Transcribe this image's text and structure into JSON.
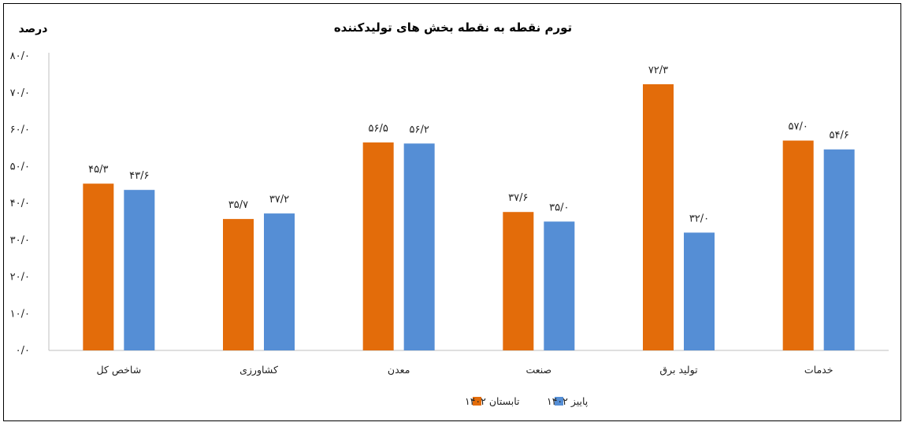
{
  "chart_data": {
    "type": "bar",
    "title": "تورم نقطه به نقطه بخش های تولیدکننده",
    "ylabel": "درصد",
    "xlabel": "",
    "ylim": [
      0,
      80
    ],
    "yticks": [
      0,
      10,
      20,
      30,
      40,
      50,
      60,
      70,
      80
    ],
    "ytick_labels": [
      "۰/۰",
      "۱۰/۰",
      "۲۰/۰",
      "۳۰/۰",
      "۴۰/۰",
      "۵۰/۰",
      "۶۰/۰",
      "۷۰/۰",
      "۸۰/۰"
    ],
    "categories": [
      "شاخص کل",
      "کشاورزی",
      "معدن",
      "صنعت",
      "تولید برق",
      "خدمات"
    ],
    "series": [
      {
        "name": "تابستان ۱۴۰۲",
        "color": "#E36C0A",
        "values": [
          45.3,
          35.7,
          56.5,
          37.6,
          72.3,
          57.0
        ],
        "labels": [
          "۴۵/۳",
          "۳۵/۷",
          "۵۶/۵",
          "۳۷/۶",
          "۷۲/۳",
          "۵۷/۰"
        ]
      },
      {
        "name": "پاییز ۱۴۰۲",
        "color": "#558ED5",
        "values": [
          43.6,
          37.2,
          56.2,
          35.0,
          32.0,
          54.6
        ],
        "labels": [
          "۴۳/۶",
          "۳۷/۲",
          "۵۶/۲",
          "۳۵/۰",
          "۳۲/۰",
          "۵۴/۶"
        ]
      }
    ],
    "legend_position": "bottom",
    "grid": false
  }
}
